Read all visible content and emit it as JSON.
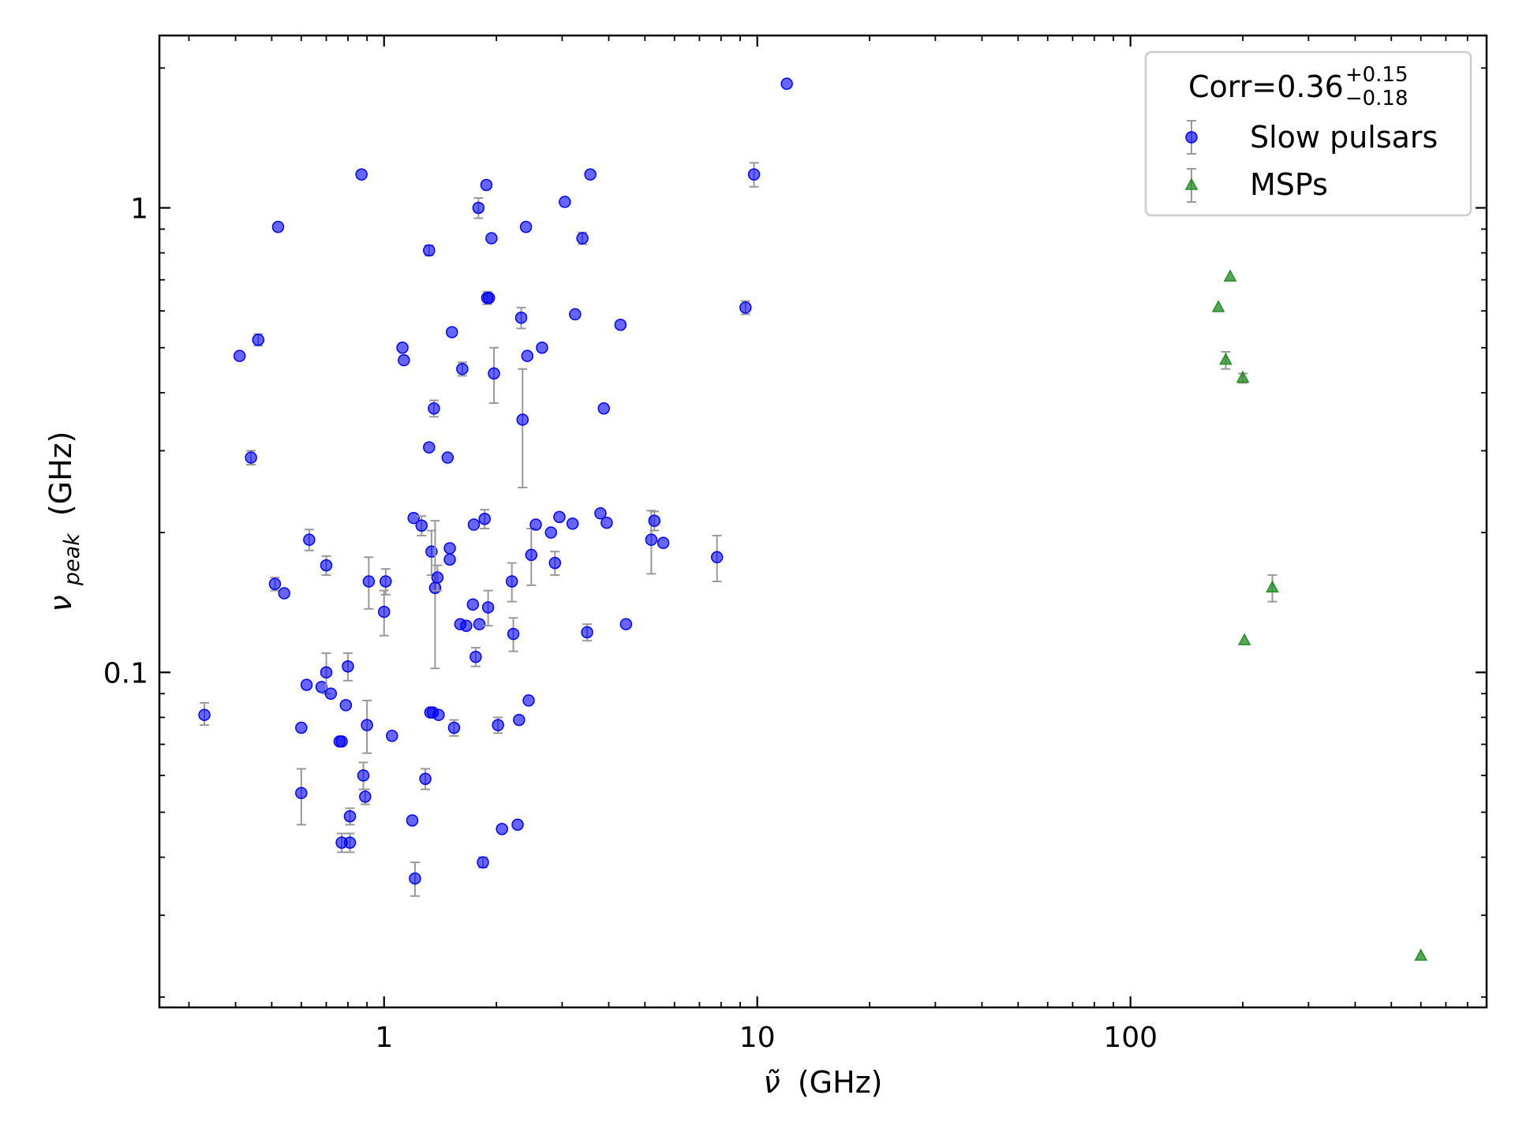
{
  "chart_data": {
    "type": "scatter",
    "title": "",
    "xlabel_symbol": "ν̃",
    "xlabel_unit": "(GHz)",
    "ylabel_symbol": "ν",
    "ylabel_sub": "peak",
    "ylabel_unit": "(GHz)",
    "xscale": "log",
    "yscale": "log",
    "xlim": [
      0.25,
      900
    ],
    "ylim": [
      0.019,
      2.35
    ],
    "xticks": [
      {
        "value": 1,
        "label": "1"
      },
      {
        "value": 10,
        "label": "10"
      },
      {
        "value": 100,
        "label": "100"
      }
    ],
    "yticks": [
      {
        "value": 0.1,
        "label": "0.1"
      },
      {
        "value": 1,
        "label": "1"
      }
    ],
    "grid": false,
    "legend": {
      "placement": "top-right",
      "corr_prefix": "Corr=0.36",
      "corr_plus": "+0.15",
      "corr_minus": "−0.18"
    },
    "series": [
      {
        "name": "Slow pulsars",
        "marker": "circle",
        "color": "#0000ff",
        "points": [
          [
            0.33,
            0.081,
            0.004,
            0.005
          ],
          [
            0.41,
            0.48,
            0,
            0
          ],
          [
            0.44,
            0.29,
            0.01,
            0.01
          ],
          [
            0.46,
            0.52,
            0.015,
            0.015
          ],
          [
            0.51,
            0.155,
            0.005,
            0.005
          ],
          [
            0.52,
            0.91,
            0,
            0
          ],
          [
            0.54,
            0.148,
            0,
            0
          ],
          [
            0.6,
            0.076,
            0,
            0
          ],
          [
            0.6,
            0.055,
            0.008,
            0.007
          ],
          [
            0.62,
            0.094,
            0,
            0
          ],
          [
            0.63,
            0.193,
            0.01,
            0.01
          ],
          [
            0.68,
            0.093,
            0,
            0
          ],
          [
            0.7,
            0.1,
            0.01,
            0.01
          ],
          [
            0.7,
            0.17,
            0.008,
            0.008
          ],
          [
            0.72,
            0.09,
            0,
            0
          ],
          [
            0.76,
            0.071,
            0,
            0
          ],
          [
            0.77,
            0.071,
            0,
            0
          ],
          [
            0.77,
            0.043,
            0.002,
            0.002
          ],
          [
            0.79,
            0.085,
            0,
            0
          ],
          [
            0.8,
            0.103,
            0.007,
            0.007
          ],
          [
            0.81,
            0.049,
            0.002,
            0.002
          ],
          [
            0.81,
            0.043,
            0.002,
            0.002
          ],
          [
            0.87,
            1.18,
            0,
            0
          ],
          [
            0.88,
            0.06,
            0.004,
            0.004
          ],
          [
            0.89,
            0.054,
            0.002,
            0.002
          ],
          [
            0.9,
            0.077,
            0.01,
            0.01
          ],
          [
            0.91,
            0.157,
            0.02,
            0.02
          ],
          [
            1,
            0.135,
            0.015,
            0.015
          ],
          [
            1.01,
            0.157,
            0.01,
            0.01
          ],
          [
            1.05,
            0.073,
            0,
            0
          ],
          [
            1.12,
            0.5,
            0,
            0
          ],
          [
            1.13,
            0.47,
            0,
            0
          ],
          [
            1.19,
            0.048,
            0,
            0
          ],
          [
            1.2,
            0.215,
            0,
            0
          ],
          [
            1.21,
            0.036,
            0.003,
            0.003
          ],
          [
            1.26,
            0.207,
            0.01,
            0.01
          ],
          [
            1.29,
            0.059,
            0.003,
            0.003
          ],
          [
            1.32,
            0.81,
            0.02,
            0.02
          ],
          [
            1.32,
            0.305,
            0,
            0
          ],
          [
            1.33,
            0.082,
            0,
            0
          ],
          [
            1.34,
            0.182,
            0.02,
            0.02
          ],
          [
            1.35,
            0.082,
            0,
            0
          ],
          [
            1.36,
            0.37,
            0.015,
            0.015
          ],
          [
            1.37,
            0.152,
            0.05,
            0.06
          ],
          [
            1.39,
            0.16,
            0.01,
            0.01
          ],
          [
            1.4,
            0.081,
            0,
            0
          ],
          [
            1.48,
            0.29,
            0,
            0
          ],
          [
            1.5,
            0.185,
            0,
            0
          ],
          [
            1.5,
            0.175,
            0,
            0
          ],
          [
            1.52,
            0.54,
            0,
            0
          ],
          [
            1.54,
            0.076,
            0.003,
            0.003
          ],
          [
            1.6,
            0.127,
            0,
            0
          ],
          [
            1.62,
            0.45,
            0.015,
            0.015
          ],
          [
            1.66,
            0.126,
            0,
            0
          ],
          [
            1.73,
            0.14,
            0,
            0
          ],
          [
            1.74,
            0.208,
            0,
            0
          ],
          [
            1.76,
            0.108,
            0.005,
            0.005
          ],
          [
            1.79,
            1,
            0.05,
            0.05
          ],
          [
            1.8,
            0.127,
            0,
            0
          ],
          [
            1.84,
            0.039,
            0.001,
            0.001
          ],
          [
            1.86,
            0.214,
            0.01,
            0.01
          ],
          [
            1.88,
            1.12,
            0,
            0
          ],
          [
            1.89,
            0.64,
            0.02,
            0.02
          ],
          [
            1.9,
            0.138,
            0.012,
            0.012
          ],
          [
            1.91,
            0.64,
            0,
            0
          ],
          [
            1.94,
            0.86,
            0,
            0
          ],
          [
            1.97,
            0.44,
            0.06,
            0.06
          ],
          [
            2.02,
            0.077,
            0.003,
            0.003
          ],
          [
            2.07,
            0.046,
            0,
            0
          ],
          [
            2.2,
            0.157,
            0.015,
            0.015
          ],
          [
            2.22,
            0.121,
            0.01,
            0.01
          ],
          [
            2.28,
            0.047,
            0,
            0
          ],
          [
            2.3,
            0.079,
            0,
            0
          ],
          [
            2.33,
            0.58,
            0.03,
            0.03
          ],
          [
            2.35,
            0.35,
            0.1,
            0.1
          ],
          [
            2.4,
            0.91,
            0,
            0
          ],
          [
            2.42,
            0.48,
            0,
            0
          ],
          [
            2.44,
            0.087,
            0,
            0
          ],
          [
            2.48,
            0.179,
            0.025,
            0.025
          ],
          [
            2.55,
            0.208,
            0,
            0
          ],
          [
            2.65,
            0.5,
            0,
            0
          ],
          [
            2.8,
            0.2,
            0,
            0
          ],
          [
            2.87,
            0.172,
            0.01,
            0.01
          ],
          [
            2.95,
            0.216,
            0,
            0
          ],
          [
            3.05,
            1.03,
            0,
            0
          ],
          [
            3.2,
            0.209,
            0,
            0
          ],
          [
            3.25,
            0.59,
            0,
            0
          ],
          [
            3.4,
            0.86,
            0.025,
            0.025
          ],
          [
            3.5,
            0.122,
            0.005,
            0.005
          ],
          [
            3.57,
            1.18,
            0,
            0
          ],
          [
            3.8,
            0.22,
            0,
            0
          ],
          [
            3.88,
            0.37,
            0,
            0
          ],
          [
            3.95,
            0.21,
            0,
            0
          ],
          [
            4.3,
            0.56,
            0,
            0
          ],
          [
            4.45,
            0.127,
            0,
            0
          ],
          [
            5.2,
            0.193,
            0.03,
            0.03
          ],
          [
            5.3,
            0.212,
            0.01,
            0.01
          ],
          [
            5.6,
            0.19,
            0,
            0
          ],
          [
            7.8,
            0.177,
            0.02,
            0.02
          ],
          [
            9.3,
            0.61,
            0.02,
            0.02
          ],
          [
            9.8,
            1.18,
            0.07,
            0.07
          ],
          [
            12,
            1.85,
            0,
            0
          ]
        ]
      },
      {
        "name": "MSPs",
        "marker": "triangle",
        "color": "#228b22",
        "points": [
          [
            172,
            0.61,
            0,
            0
          ],
          [
            180,
            0.47,
            0.02,
            0.02
          ],
          [
            185,
            0.71,
            0,
            0
          ],
          [
            200,
            0.43,
            0.01,
            0.01
          ],
          [
            202,
            0.117,
            0,
            0
          ],
          [
            240,
            0.152,
            0.01,
            0.01
          ],
          [
            600,
            0.0245,
            0,
            0
          ]
        ]
      }
    ]
  }
}
